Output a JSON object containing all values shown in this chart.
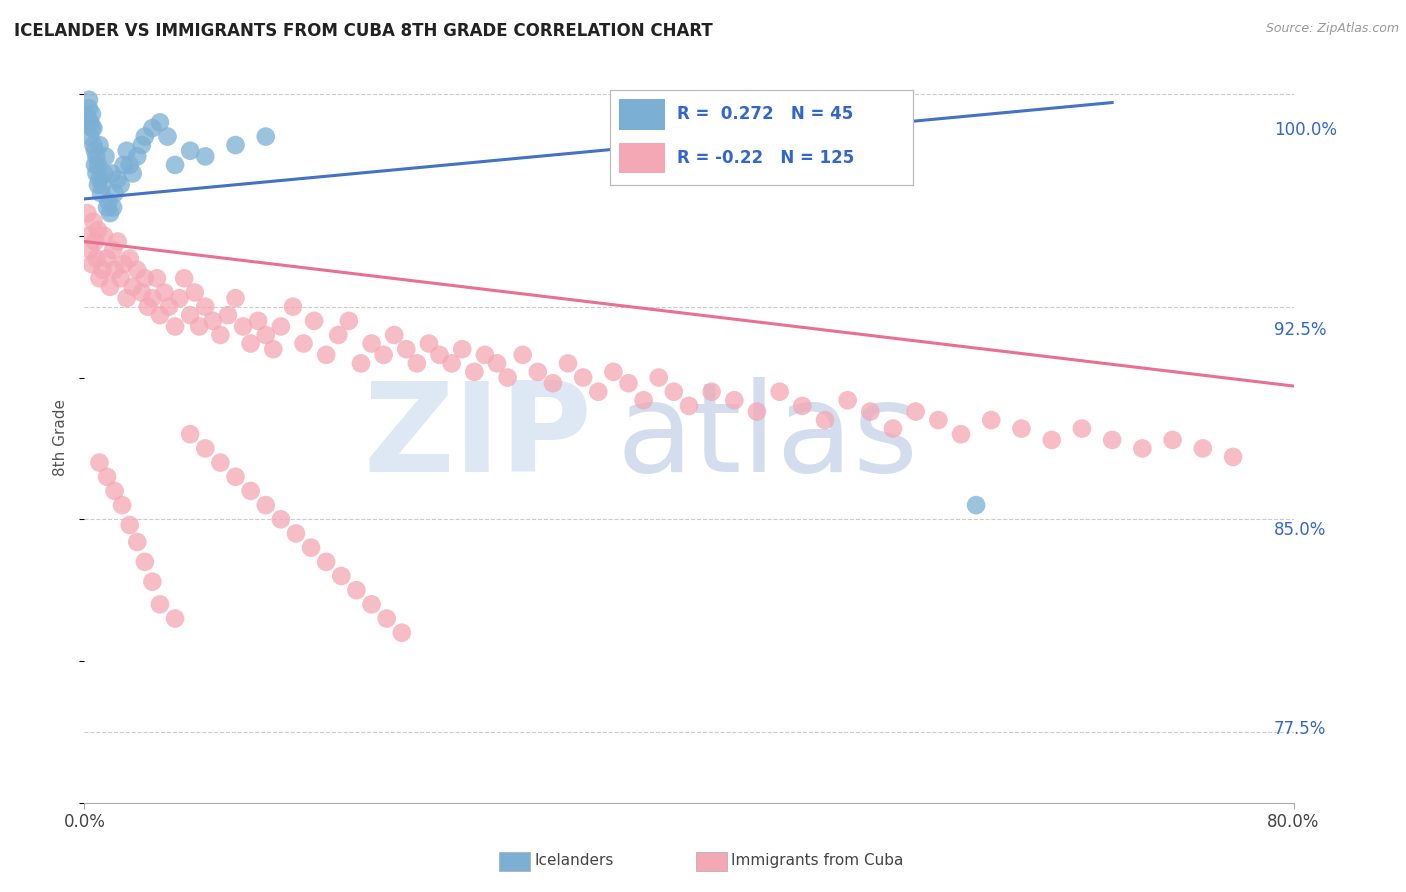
{
  "title": "ICELANDER VS IMMIGRANTS FROM CUBA 8TH GRADE CORRELATION CHART",
  "source": "Source: ZipAtlas.com",
  "ylabel": "8th Grade",
  "xmin": 0.0,
  "xmax": 0.8,
  "ymin": 0.75,
  "ymax": 1.008,
  "yticks": [
    0.775,
    0.85,
    0.925,
    1.0
  ],
  "ytick_labels": [
    "77.5%",
    "85.0%",
    "92.5%",
    "100.0%"
  ],
  "r_blue": 0.272,
  "n_blue": 45,
  "r_pink": -0.22,
  "n_pink": 125,
  "blue_color": "#7BAFD4",
  "pink_color": "#F4A7B5",
  "blue_line_color": "#4472C4",
  "pink_line_color": "#E87090",
  "blue_line_x": [
    0.0,
    0.68
  ],
  "blue_line_y": [
    0.963,
    0.997
  ],
  "pink_line_x": [
    0.0,
    0.8
  ],
  "pink_line_y": [
    0.948,
    0.897
  ],
  "blue_scatter_x": [
    0.002,
    0.003,
    0.004,
    0.004,
    0.005,
    0.005,
    0.006,
    0.006,
    0.007,
    0.007,
    0.008,
    0.008,
    0.009,
    0.009,
    0.01,
    0.01,
    0.011,
    0.012,
    0.013,
    0.014,
    0.015,
    0.016,
    0.017,
    0.018,
    0.019,
    0.02,
    0.022,
    0.024,
    0.026,
    0.028,
    0.03,
    0.032,
    0.035,
    0.038,
    0.04,
    0.045,
    0.05,
    0.055,
    0.06,
    0.07,
    0.08,
    0.1,
    0.12,
    0.59,
    0.003
  ],
  "blue_scatter_y": [
    0.992,
    0.995,
    0.99,
    0.985,
    0.988,
    0.993,
    0.982,
    0.988,
    0.98,
    0.975,
    0.978,
    0.972,
    0.968,
    0.975,
    0.97,
    0.982,
    0.965,
    0.968,
    0.972,
    0.978,
    0.96,
    0.962,
    0.958,
    0.972,
    0.96,
    0.965,
    0.97,
    0.968,
    0.975,
    0.98,
    0.975,
    0.972,
    0.978,
    0.982,
    0.985,
    0.988,
    0.99,
    0.985,
    0.975,
    0.98,
    0.978,
    0.982,
    0.985,
    0.855,
    0.998
  ],
  "pink_scatter_x": [
    0.002,
    0.003,
    0.004,
    0.005,
    0.006,
    0.007,
    0.008,
    0.009,
    0.01,
    0.012,
    0.013,
    0.015,
    0.017,
    0.019,
    0.02,
    0.022,
    0.024,
    0.026,
    0.028,
    0.03,
    0.032,
    0.035,
    0.038,
    0.04,
    0.042,
    0.045,
    0.048,
    0.05,
    0.053,
    0.056,
    0.06,
    0.063,
    0.066,
    0.07,
    0.073,
    0.076,
    0.08,
    0.085,
    0.09,
    0.095,
    0.1,
    0.105,
    0.11,
    0.115,
    0.12,
    0.125,
    0.13,
    0.138,
    0.145,
    0.152,
    0.16,
    0.168,
    0.175,
    0.183,
    0.19,
    0.198,
    0.205,
    0.213,
    0.22,
    0.228,
    0.235,
    0.243,
    0.25,
    0.258,
    0.265,
    0.273,
    0.28,
    0.29,
    0.3,
    0.31,
    0.32,
    0.33,
    0.34,
    0.35,
    0.36,
    0.37,
    0.38,
    0.39,
    0.4,
    0.415,
    0.43,
    0.445,
    0.46,
    0.475,
    0.49,
    0.505,
    0.52,
    0.535,
    0.55,
    0.565,
    0.58,
    0.6,
    0.62,
    0.64,
    0.66,
    0.68,
    0.7,
    0.72,
    0.74,
    0.76,
    0.01,
    0.015,
    0.02,
    0.025,
    0.03,
    0.035,
    0.04,
    0.045,
    0.05,
    0.06,
    0.07,
    0.08,
    0.09,
    0.1,
    0.11,
    0.12,
    0.13,
    0.14,
    0.15,
    0.16,
    0.17,
    0.18,
    0.19,
    0.2,
    0.21
  ],
  "pink_scatter_y": [
    0.958,
    0.95,
    0.945,
    0.94,
    0.955,
    0.948,
    0.942,
    0.952,
    0.935,
    0.938,
    0.95,
    0.942,
    0.932,
    0.945,
    0.938,
    0.948,
    0.935,
    0.94,
    0.928,
    0.942,
    0.932,
    0.938,
    0.93,
    0.935,
    0.925,
    0.928,
    0.935,
    0.922,
    0.93,
    0.925,
    0.918,
    0.928,
    0.935,
    0.922,
    0.93,
    0.918,
    0.925,
    0.92,
    0.915,
    0.922,
    0.928,
    0.918,
    0.912,
    0.92,
    0.915,
    0.91,
    0.918,
    0.925,
    0.912,
    0.92,
    0.908,
    0.915,
    0.92,
    0.905,
    0.912,
    0.908,
    0.915,
    0.91,
    0.905,
    0.912,
    0.908,
    0.905,
    0.91,
    0.902,
    0.908,
    0.905,
    0.9,
    0.908,
    0.902,
    0.898,
    0.905,
    0.9,
    0.895,
    0.902,
    0.898,
    0.892,
    0.9,
    0.895,
    0.89,
    0.895,
    0.892,
    0.888,
    0.895,
    0.89,
    0.885,
    0.892,
    0.888,
    0.882,
    0.888,
    0.885,
    0.88,
    0.885,
    0.882,
    0.878,
    0.882,
    0.878,
    0.875,
    0.878,
    0.875,
    0.872,
    0.87,
    0.865,
    0.86,
    0.855,
    0.848,
    0.842,
    0.835,
    0.828,
    0.82,
    0.815,
    0.88,
    0.875,
    0.87,
    0.865,
    0.86,
    0.855,
    0.85,
    0.845,
    0.84,
    0.835,
    0.83,
    0.825,
    0.82,
    0.815,
    0.81
  ]
}
